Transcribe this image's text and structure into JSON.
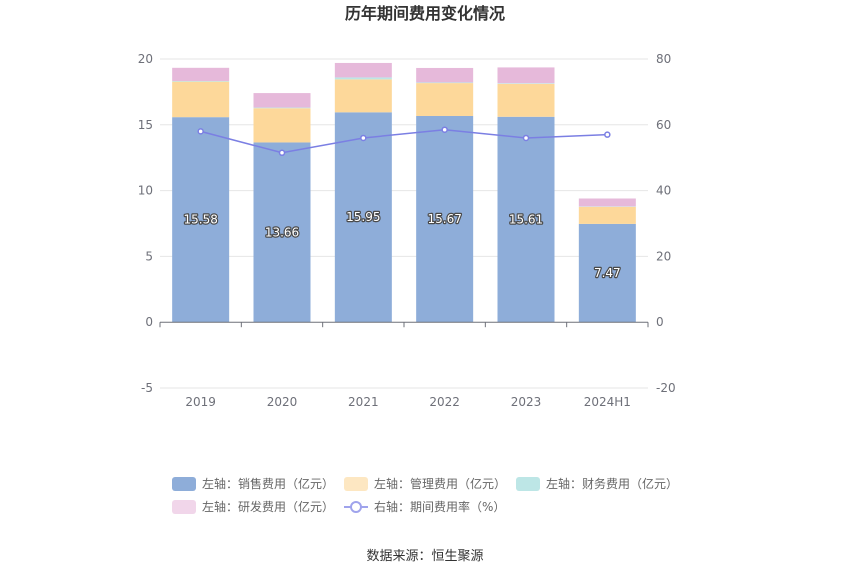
{
  "chart_data": {
    "type": "bar",
    "title": "历年期间费用变化情况",
    "categories": [
      "2019",
      "2020",
      "2021",
      "2022",
      "2023",
      "2024H1"
    ],
    "series": [
      {
        "name": "左轴：销售费用（亿元）",
        "axis": "left",
        "type": "bar",
        "color": "#8eadd9",
        "values": [
          15.58,
          13.66,
          15.95,
          15.67,
          15.61,
          7.47
        ],
        "labels": [
          "15.58",
          "13.66",
          "15.95",
          "15.67",
          "15.61",
          "7.47"
        ]
      },
      {
        "name": "左轴：管理费用（亿元）",
        "axis": "left",
        "type": "bar",
        "color": "#fdd89a",
        "values": [
          2.7,
          2.6,
          2.5,
          2.5,
          2.5,
          1.3
        ]
      },
      {
        "name": "左轴：财务费用（亿元）",
        "axis": "left",
        "type": "bar",
        "color": "#bde6e6",
        "values": [
          0.05,
          0.05,
          0.15,
          0.05,
          0.05,
          0.03
        ]
      },
      {
        "name": "左轴：研发费用（亿元）",
        "axis": "left",
        "type": "bar",
        "color": "#e6b9da",
        "values": [
          1.0,
          1.1,
          1.1,
          1.1,
          1.2,
          0.6
        ]
      },
      {
        "name": "右轴：期间费用率（%）",
        "axis": "right",
        "type": "line",
        "color": "#7b7fe3",
        "values": [
          58.0,
          51.5,
          56.0,
          58.5,
          56.0,
          57.0
        ]
      }
    ],
    "left_axis": {
      "ylim": [
        -5,
        20
      ],
      "ticks": [
        "-5",
        "0",
        "5",
        "10",
        "15",
        "20"
      ]
    },
    "right_axis": {
      "ylim": [
        -20,
        80
      ],
      "ticks": [
        "-20",
        "0",
        "20",
        "40",
        "60",
        "80"
      ]
    },
    "grid": true,
    "legend_position": "bottom"
  },
  "source_text": "数据来源：恒生聚源"
}
